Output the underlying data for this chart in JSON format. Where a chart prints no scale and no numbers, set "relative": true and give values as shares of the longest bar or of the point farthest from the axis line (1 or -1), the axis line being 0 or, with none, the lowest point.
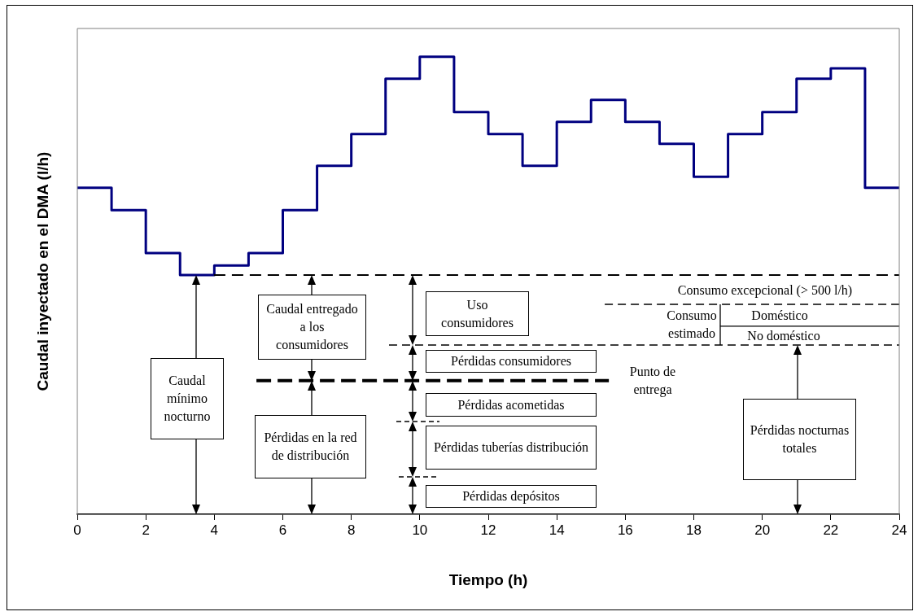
{
  "chart_data": {
    "type": "step",
    "relative": true,
    "xlabel": "Tiempo (h)",
    "ylabel": "Caudal inyectado en el DMA (l/h)",
    "x": [
      0,
      1,
      2,
      3,
      4,
      5,
      6,
      7,
      8,
      9,
      10,
      11,
      12,
      13,
      14,
      15,
      16,
      17,
      18,
      19,
      20,
      21,
      22,
      23,
      24
    ],
    "series": [
      {
        "color": "#000080",
        "values": [
          0.714,
          0.665,
          0.571,
          0.523,
          0.544,
          0.571,
          0.665,
          0.762,
          0.831,
          0.952,
          1,
          0.879,
          0.831,
          0.762,
          0.858,
          0.906,
          0.858,
          0.81,
          0.738,
          0.831,
          0.879,
          0.952,
          0.975,
          0.714,
          0.714
        ]
      }
    ],
    "ref_lines": [
      {
        "axis": "y",
        "value": 0.523,
        "line_style": "dashed"
      },
      {
        "axis": "y",
        "value": 0.459,
        "line_style": "dashed"
      },
      {
        "axis": "y",
        "value": 0.37,
        "line_style": "dashed"
      },
      {
        "axis": "y",
        "value": 0.292,
        "line_style": "dashed"
      },
      {
        "axis": "y",
        "value": 0.411,
        "line_style": "solid"
      }
    ],
    "xlim": [
      0,
      24
    ],
    "xticks": [
      0,
      2,
      4,
      6,
      8,
      10,
      12,
      14,
      16,
      18,
      20,
      22,
      24
    ],
    "grid": false,
    "legend": false,
    "marker": "none",
    "annotations": [
      "Caudal mínimo nocturno",
      "Caudal entregado a los consumidores",
      "Pérdidas en la red de distribución",
      "Uso consumidores",
      "Pérdidas consumidores",
      "Punto de entrega",
      "Pérdidas acometidas",
      "Pérdidas tuberías distribución",
      "Pérdidas depósitos",
      "Consumo excepcional (> 500 l/h)",
      "Consumo estimado",
      "Doméstico",
      "No doméstico",
      "Pérdidas nocturnas totales"
    ]
  }
}
